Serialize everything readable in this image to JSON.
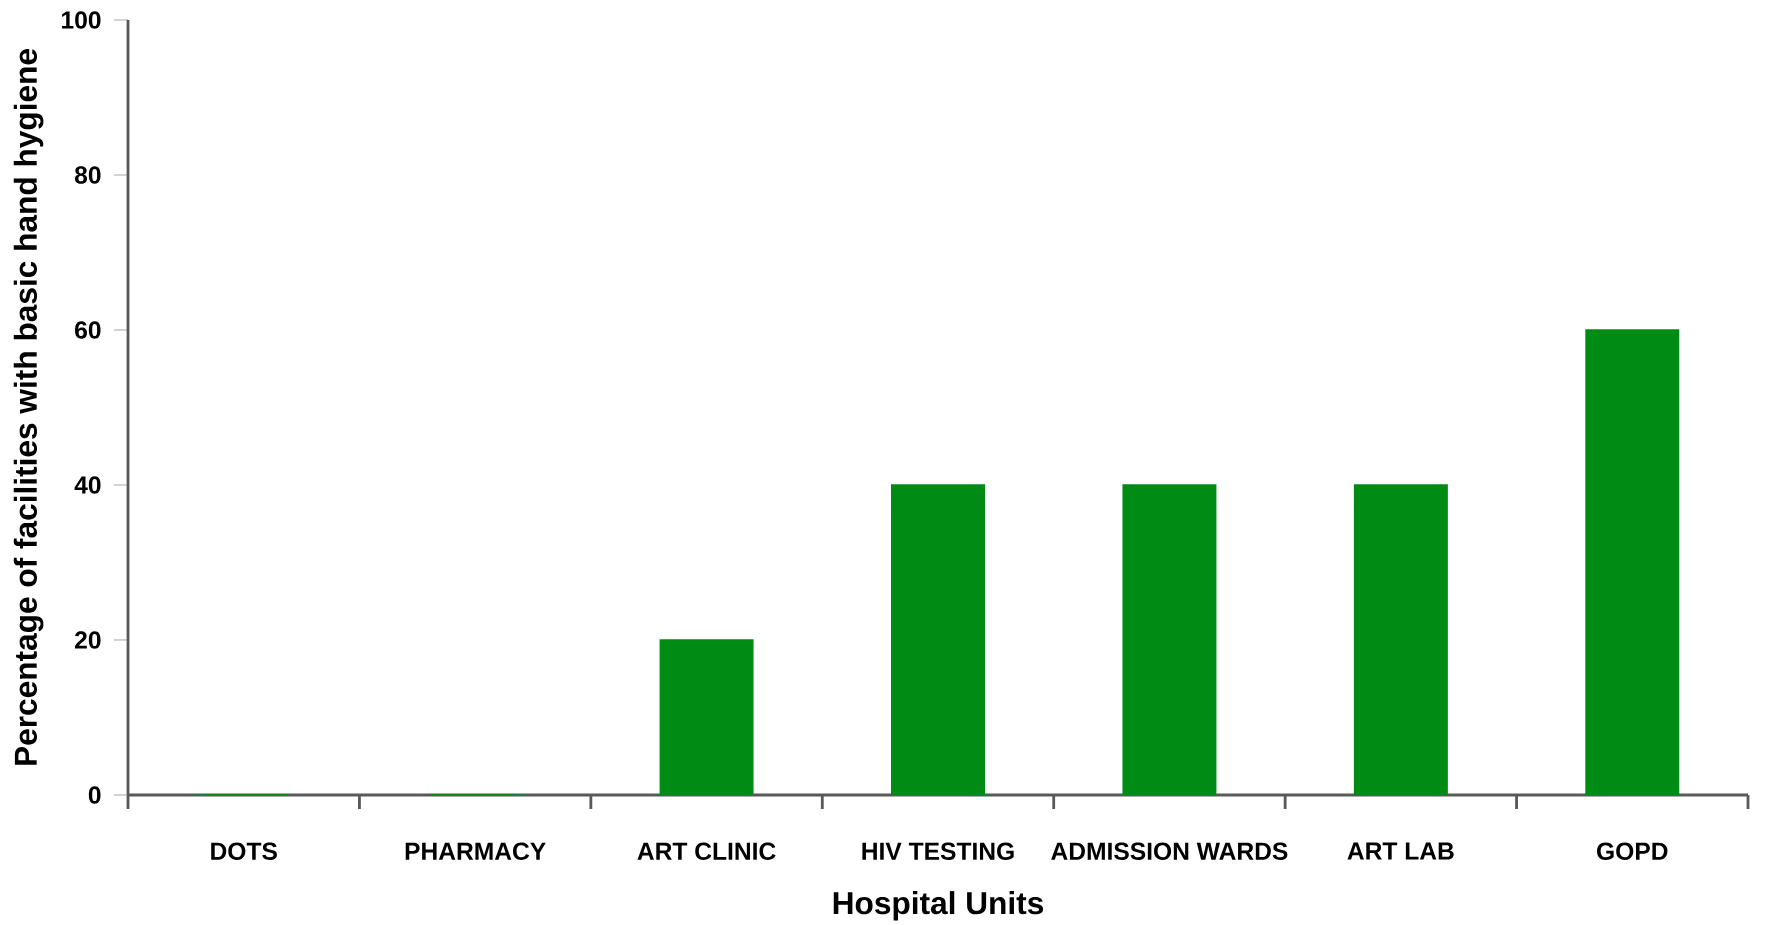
{
  "chart_data": {
    "type": "bar",
    "xlabel": "Hospital Units",
    "ylabel": "Percentage of facilities with basic hand hygiene",
    "categories": [
      "DOTS",
      "PHARMACY",
      "ART CLINIC",
      "HIV TESTING",
      "ADMISSION WARDS",
      "ART LAB",
      "GOPD"
    ],
    "values": [
      0,
      0,
      20,
      40,
      40,
      40,
      60
    ],
    "color": "#008c14",
    "ylim": [
      0,
      100
    ],
    "yticks": [
      0,
      20,
      40,
      60,
      80,
      100
    ]
  }
}
